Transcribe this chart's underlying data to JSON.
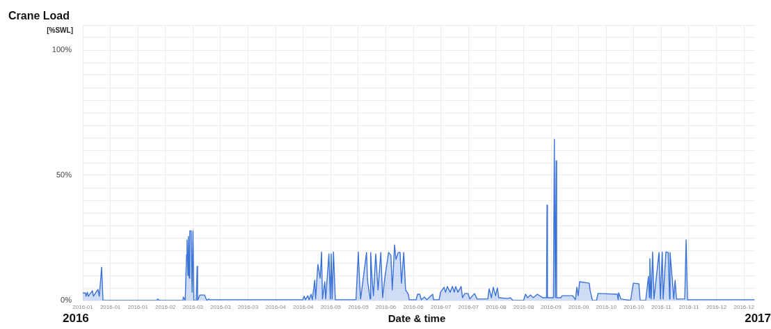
{
  "chart_data": {
    "type": "area",
    "title": "Crane Load",
    "ylabel": "[%SWL]",
    "xlabel": "Date & time",
    "annotations": [
      "2016",
      "2017"
    ],
    "xlim": [
      "2016-01-01",
      "2017-01-01"
    ],
    "xticks": [
      {
        "value": "2016-01-01",
        "label": "2016-01"
      },
      {
        "value": "2016-01-16",
        "label": "2016-01"
      },
      {
        "value": "2016-01-31",
        "label": "2016-01"
      },
      {
        "value": "2016-02-15",
        "label": "2016-02"
      },
      {
        "value": "2016-03-01",
        "label": "2016-03"
      },
      {
        "value": "2016-03-16",
        "label": "2016-03"
      },
      {
        "value": "2016-03-31",
        "label": "2016-03"
      },
      {
        "value": "2016-04-15",
        "label": "2016-04"
      },
      {
        "value": "2016-04-30",
        "label": "2016-04"
      },
      {
        "value": "2016-05-15",
        "label": "2016-05"
      },
      {
        "value": "2016-05-30",
        "label": "2016-05"
      },
      {
        "value": "2016-06-14",
        "label": "2016-06"
      },
      {
        "value": "2016-06-29",
        "label": "2016-06"
      },
      {
        "value": "2016-07-14",
        "label": "2016-07"
      },
      {
        "value": "2016-07-29",
        "label": "2016-07"
      },
      {
        "value": "2016-08-13",
        "label": "2016-08"
      },
      {
        "value": "2016-08-28",
        "label": "2016-08"
      },
      {
        "value": "2016-09-12",
        "label": "2016-09"
      },
      {
        "value": "2016-09-27",
        "label": "2016-09"
      },
      {
        "value": "2016-10-12",
        "label": "2016-10"
      },
      {
        "value": "2016-10-27",
        "label": "2016-10"
      },
      {
        "value": "2016-11-11",
        "label": "2016-11"
      },
      {
        "value": "2016-11-26",
        "label": "2016-11"
      },
      {
        "value": "2016-12-11",
        "label": "2016-12"
      },
      {
        "value": "2016-12-26",
        "label": "2016-12"
      }
    ],
    "ylim": [
      0,
      110
    ],
    "yticks": [
      {
        "value": 0,
        "label": "0%"
      },
      {
        "value": 5,
        "label": null
      },
      {
        "value": 10,
        "label": null
      },
      {
        "value": 15,
        "label": null
      },
      {
        "value": 20,
        "label": null
      },
      {
        "value": 25,
        "label": null
      },
      {
        "value": 30,
        "label": null
      },
      {
        "value": 35,
        "label": null
      },
      {
        "value": 40,
        "label": null
      },
      {
        "value": 45,
        "label": null
      },
      {
        "value": 50,
        "label": "50%"
      },
      {
        "value": 55,
        "label": null
      },
      {
        "value": 60,
        "label": null
      },
      {
        "value": 65,
        "label": null
      },
      {
        "value": 70,
        "label": null
      },
      {
        "value": 75,
        "label": null
      },
      {
        "value": 80,
        "label": null
      },
      {
        "value": 85,
        "label": null
      },
      {
        "value": 90,
        "label": null
      },
      {
        "value": 95,
        "label": null
      },
      {
        "value": 100,
        "label": "100%"
      },
      {
        "value": 105,
        "label": null
      },
      {
        "value": 110,
        "label": null
      }
    ],
    "grid": true,
    "legend": false,
    "marker": "none",
    "line_style": "solid",
    "series": [
      {
        "color": "#3a72d8",
        "x": [
          "2016-01-01T00:00",
          "2016-01-02T12:00",
          "2016-01-02T18:00",
          "2016-01-03T12:00",
          "2016-01-04T00:00",
          "2016-01-06T06:00",
          "2016-01-06T18:00",
          "2016-01-09T06:00",
          "2016-01-10T00:00",
          "2016-01-11T06:00",
          "2016-01-12T00:00",
          "2016-02-10T06:00",
          "2016-02-10T18:00",
          "2016-02-11T18:00",
          "2016-02-24T12:00",
          "2016-02-24T18:00",
          "2016-02-25T18:00",
          "2016-02-26T12:00",
          "2016-02-26T18:00",
          "2016-02-27T06:00",
          "2016-02-27T12:00",
          "2016-02-28T00:00",
          "2016-02-28T06:00",
          "2016-02-29T00:00",
          "2016-02-29T12:00",
          "2016-03-01T00:00",
          "2016-03-01T12:00",
          "2016-03-02T18:00",
          "2016-03-03T06:00",
          "2016-03-03T12:00",
          "2016-03-04T18:00",
          "2016-03-07T06:00",
          "2016-03-08T12:00",
          "2016-03-09T12:00",
          "2016-03-10T06:00",
          "2016-04-29T18:00",
          "2016-04-30T12:00",
          "2016-05-01T06:00",
          "2016-05-02T12:00",
          "2016-05-03T06:00",
          "2016-05-04T06:00",
          "2016-05-05T00:00",
          "2016-05-06T06:00",
          "2016-05-06T18:00",
          "2016-05-08T00:00",
          "2016-05-09T06:00",
          "2016-05-10T00:00",
          "2016-05-10T12:00",
          "2016-05-11T18:00",
          "2016-05-12T06:00",
          "2016-05-14T00:00",
          "2016-05-14T18:00",
          "2016-05-15T06:00",
          "2016-05-15T18:00",
          "2016-05-16T12:00",
          "2016-05-17T12:00",
          "2016-05-28T18:00",
          "2016-05-30T00:00",
          "2016-05-30T18:00",
          "2016-05-31T06:00",
          "2016-06-03T12:00",
          "2016-06-04T00:00",
          "2016-06-05T12:00",
          "2016-06-05T18:00",
          "2016-06-06T12:00",
          "2016-06-07T06:00",
          "2016-06-08T12:00",
          "2016-06-09T18:00",
          "2016-06-11T06:00",
          "2016-06-12T06:00",
          "2016-06-13T12:00",
          "2016-06-15T12:00",
          "2016-06-16T18:00",
          "2016-06-17T12:00",
          "2016-06-18T18:00",
          "2016-06-19T12:00",
          "2016-06-20T18:00",
          "2016-06-21T18:00",
          "2016-06-22T12:00",
          "2016-06-23T18:00",
          "2016-06-24T18:00",
          "2016-06-26T06:00",
          "2016-06-26T18:00",
          "2016-06-30T12:00",
          "2016-07-01T06:00",
          "2016-07-02T12:00",
          "2016-07-03T06:00",
          "2016-07-05T00:00",
          "2016-07-06T06:00",
          "2016-07-09T12:00",
          "2016-07-10T00:00",
          "2016-07-13T00:00",
          "2016-07-13T18:00",
          "2016-07-15T18:00",
          "2016-07-16T12:00",
          "2016-07-17T12:00",
          "2016-07-19T00:00",
          "2016-07-20T06:00",
          "2016-07-21T06:00",
          "2016-07-22T00:00",
          "2016-07-23T06:00",
          "2016-07-25T00:00",
          "2016-07-25T18:00",
          "2016-07-27T00:00",
          "2016-07-28T18:00",
          "2016-07-29T18:00",
          "2016-08-01T06:00",
          "2016-08-02T18:00",
          "2016-08-08T12:00",
          "2016-08-09T06:00",
          "2016-08-10T12:00",
          "2016-08-11T12:00",
          "2016-08-12T18:00",
          "2016-08-13T18:00",
          "2016-08-14T12:00",
          "2016-08-19T12:00",
          "2016-08-20T18:00",
          "2016-08-22T06:00",
          "2016-08-28T00:00",
          "2016-08-29T00:00",
          "2016-08-30T06:00",
          "2016-08-31T18:00",
          "2016-09-02T06:00",
          "2016-09-04T12:00",
          "2016-09-07T12:00",
          "2016-09-09T12:00",
          "2016-09-09T18:00",
          "2016-09-10T00:00",
          "2016-09-13T06:00",
          "2016-09-13T18:00",
          "2016-09-14T06:00",
          "2016-09-14T18:00",
          "2016-09-15T00:00",
          "2016-09-17T06:00",
          "2016-09-18T00:00",
          "2016-09-23T18:00",
          "2016-09-25T06:00",
          "2016-09-26T00:00",
          "2016-09-26T18:00",
          "2016-09-27T12:00",
          "2016-10-02T18:00",
          "2016-10-03T06:00",
          "2016-10-04T12:00",
          "2016-10-06T18:00",
          "2016-10-07T12:00",
          "2016-10-18T00:00",
          "2016-10-18T12:00",
          "2016-10-18T18:00",
          "2016-10-20T00:00",
          "2016-10-22T18:00",
          "2016-10-25T06:00",
          "2016-10-26T18:00",
          "2016-10-29T18:00",
          "2016-10-30T12:00",
          "2016-11-02T12:00",
          "2016-11-04T00:00",
          "2016-11-04T12:00",
          "2016-11-04T18:00",
          "2016-11-05T12:00",
          "2016-11-06T06:00",
          "2016-11-07T00:00",
          "2016-11-09T18:00",
          "2016-11-10T12:00",
          "2016-11-11T12:00",
          "2016-11-12T00:00",
          "2016-11-13T12:00",
          "2016-11-14T18:00",
          "2016-11-15T12:00",
          "2016-11-15T18:00",
          "2016-11-17T00:00",
          "2016-11-17T18:00",
          "2016-11-18T12:00",
          "2016-11-19T06:00",
          "2016-11-23T18:00",
          "2016-11-24T12:00",
          "2016-11-25T06:00",
          "2016-12-31T18:00"
        ],
        "values": [
          3,
          3,
          1.7,
          3.3,
          1.7,
          3.9,
          1.7,
          4.4,
          1.7,
          13.3,
          0,
          0,
          0.6,
          0,
          0,
          1.4,
          0,
          18.3,
          24.2,
          10,
          25.6,
          8.9,
          27.8,
          27.8,
          3.3,
          27.8,
          0,
          0,
          13.6,
          0,
          2.2,
          2.2,
          0,
          0.6,
          0.3,
          0.3,
          1.7,
          0.3,
          1.9,
          0.3,
          2.5,
          0.3,
          8.1,
          0.6,
          14.4,
          8.9,
          19.4,
          0.6,
          7.5,
          0.6,
          18.6,
          0.6,
          18.6,
          0.6,
          19.4,
          0.3,
          0.3,
          19.4,
          6.9,
          0.6,
          19.2,
          8.1,
          0.6,
          19.2,
          8.9,
          1.9,
          18.6,
          4.2,
          19.2,
          1.1,
          9.4,
          19.2,
          18.1,
          4.2,
          22.2,
          16.4,
          19.2,
          19.2,
          6.9,
          19.2,
          4.2,
          2.5,
          0.3,
          0.3,
          2.5,
          2.5,
          0.3,
          1.4,
          0.3,
          2.5,
          0.3,
          0.3,
          3.3,
          5.3,
          3.3,
          5.6,
          3.3,
          5.6,
          3.3,
          5.6,
          3.3,
          5.6,
          1.1,
          2.8,
          2.8,
          0.6,
          2.8,
          0.6,
          0.6,
          4.7,
          1.1,
          5.3,
          1.9,
          5,
          1.1,
          0.8,
          1.1,
          0,
          0,
          2.5,
          1.1,
          2.2,
          1.1,
          2.5,
          1.1,
          1.1,
          38.1,
          1.1,
          1.1,
          64.4,
          1.1,
          55.8,
          1.1,
          1.1,
          1.9,
          1.9,
          0.3,
          5.3,
          1.9,
          7.5,
          6.9,
          3.9,
          0,
          0,
          2.8,
          2.5,
          0.3,
          3.1,
          0.6,
          0.3,
          0,
          6.9,
          6.7,
          0,
          0,
          9.7,
          1.1,
          16.7,
          0.6,
          19.4,
          0.6,
          19.2,
          0.6,
          19.4,
          0.6,
          19.4,
          19.2,
          0.6,
          19.2,
          8.1,
          0.6,
          8.1,
          0.6,
          0.6,
          24.2,
          0.3,
          0.3
        ]
      }
    ]
  }
}
